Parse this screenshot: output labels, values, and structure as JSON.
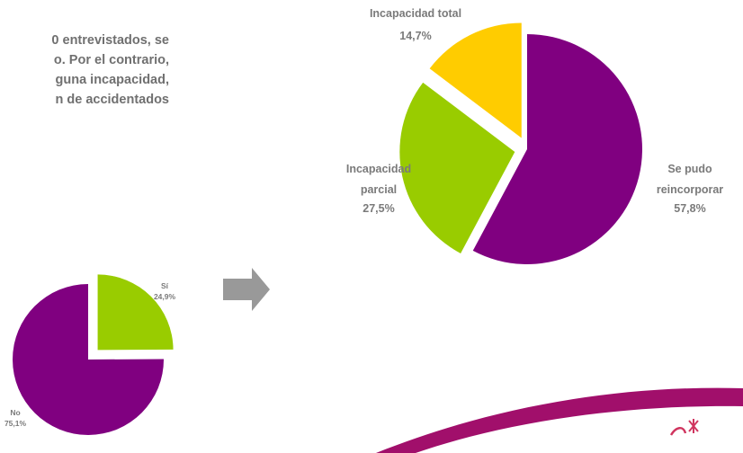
{
  "text_lines": [
    "0 entrevistados, se",
    "o. Por el contrario,",
    "guna incapacidad,",
    "n de accidentados"
  ],
  "colors": {
    "purple": "#800080",
    "green": "#99cc00",
    "yellow": "#ffcc00",
    "arrow": "#999999",
    "swoosh": "#a10f6b",
    "logo": "#d0355f"
  },
  "chart_data": [
    {
      "type": "pie",
      "title": "",
      "slices": [
        {
          "label": "Sí",
          "value": 24.9,
          "value_label": "24,9%",
          "color": "#99cc00",
          "exploded": true
        },
        {
          "label": "No",
          "value": 75.1,
          "value_label": "75,1%",
          "color": "#800080",
          "exploded": false
        }
      ],
      "start": "12 o'clock",
      "direction": "clockwise"
    },
    {
      "type": "pie",
      "title": "",
      "slices": [
        {
          "label": "Se pudo reincorporar",
          "label_lines": [
            "Se pudo",
            "reincorporar"
          ],
          "value": 57.8,
          "value_label": "57,8%",
          "color": "#800080",
          "exploded": false
        },
        {
          "label": "Incapacidad parcial",
          "label_lines": [
            "Incapacidad",
            "parcial"
          ],
          "value": 27.5,
          "value_label": "27,5%",
          "color": "#99cc00",
          "exploded": true
        },
        {
          "label": "Incapacidad total",
          "label_lines": [
            "Incapacidad total"
          ],
          "value": 14.7,
          "value_label": "14,7%",
          "color": "#ffcc00",
          "exploded": true
        }
      ],
      "start": "12 o'clock",
      "direction": "clockwise"
    }
  ]
}
